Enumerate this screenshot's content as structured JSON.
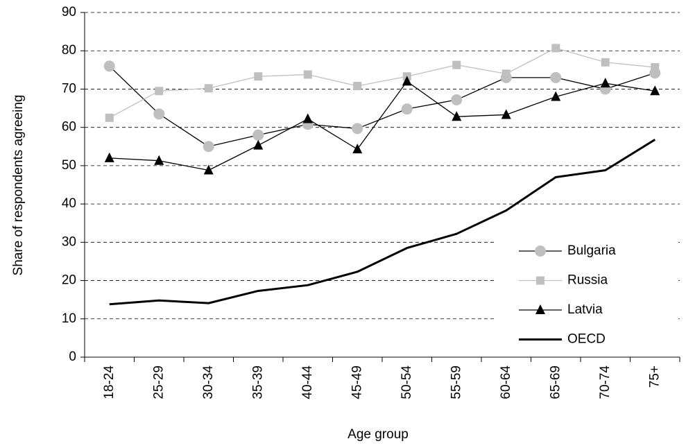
{
  "chart_data": {
    "type": "line",
    "x_label": "Age group",
    "y_label": "Share of respondents agreeing",
    "categories": [
      "18-24",
      "25-29",
      "30-34",
      "35-39",
      "40-44",
      "45-49",
      "50-54",
      "55-59",
      "60-64",
      "65-69",
      "70-74",
      "75+"
    ],
    "series": [
      {
        "name": "Bulgaria",
        "color": "#000000",
        "marker": "circle",
        "marker_color": "#bfbfbf",
        "line_width": 1.3,
        "values": [
          76,
          63.5,
          55,
          58,
          60.8,
          59.7,
          64.8,
          67.2,
          73,
          73,
          70,
          74.2
        ]
      },
      {
        "name": "Russia",
        "color": "#bfbfbf",
        "marker": "square",
        "marker_color": "#bfbfbf",
        "line_width": 1.3,
        "values": [
          62.5,
          69.5,
          70.2,
          73.3,
          73.8,
          70.8,
          73.3,
          76.3,
          74,
          80.7,
          77,
          75.7
        ]
      },
      {
        "name": "Latvia",
        "color": "#000000",
        "marker": "triangle",
        "marker_color": "#000000",
        "line_width": 1.3,
        "values": [
          52,
          51.3,
          48.8,
          55.3,
          62.2,
          54.3,
          72,
          62.8,
          63.3,
          68,
          71.5,
          69.5
        ]
      },
      {
        "name": "OECD",
        "color": "#000000",
        "marker": "none",
        "marker_color": "#000000",
        "line_width": 3,
        "values": [
          13.8,
          14.8,
          14.1,
          17.3,
          18.8,
          22.3,
          28.5,
          32.2,
          38.3,
          47,
          48.8,
          56.8
        ]
      }
    ],
    "ylim": [
      0,
      90
    ],
    "yticks": [
      0,
      10,
      20,
      30,
      40,
      50,
      60,
      70,
      80,
      90
    ],
    "grid": true,
    "legend": "lower right"
  }
}
